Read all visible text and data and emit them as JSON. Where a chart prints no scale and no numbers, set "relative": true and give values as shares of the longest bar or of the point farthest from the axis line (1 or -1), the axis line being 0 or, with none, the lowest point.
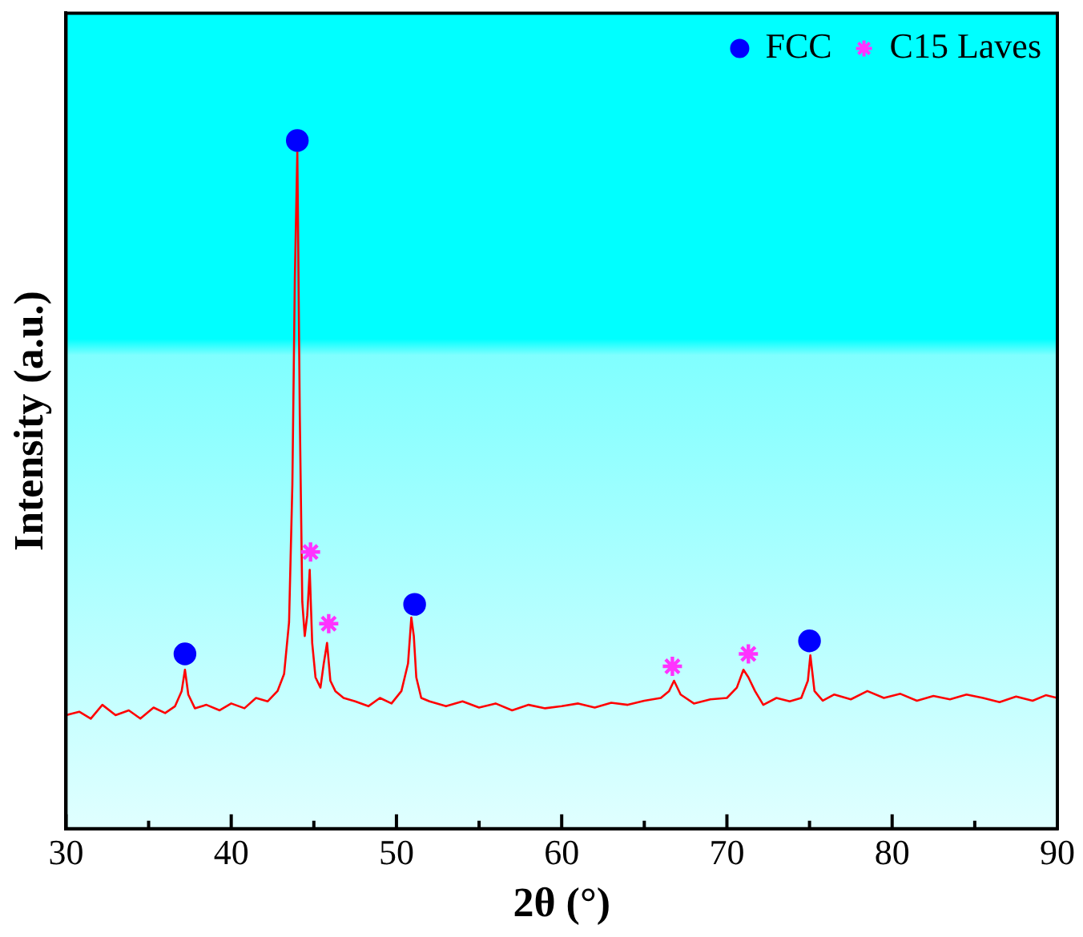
{
  "chart_data": {
    "type": "line",
    "relative": true,
    "xlabel": "2θ (°)",
    "ylabel": "Intensity (a.u.)",
    "xlim": [
      30,
      90
    ],
    "xticks": [
      30,
      {
        "value": 35,
        "label": null
      },
      40,
      {
        "value": 45,
        "label": null
      },
      50,
      {
        "value": 55,
        "label": null
      },
      60,
      {
        "value": 65,
        "label": null
      },
      70,
      {
        "value": 75,
        "label": null
      },
      80,
      {
        "value": 85,
        "label": null
      },
      90
    ],
    "legend": "top right",
    "tick_labels": "x",
    "series": [
      {
        "color": "#ff0000",
        "marker": "none",
        "x": [
          30,
          30.8,
          31.5,
          32.2,
          33,
          33.8,
          34.5,
          35.3,
          36,
          36.6,
          37,
          37.2,
          37.4,
          37.8,
          38.5,
          39.3,
          40,
          40.8,
          41.5,
          42.2,
          42.8,
          43.2,
          43.5,
          43.7,
          43.85,
          44,
          44.15,
          44.3,
          44.45,
          44.6,
          44.75,
          44.9,
          45.1,
          45.4,
          45.6,
          45.8,
          46,
          46.3,
          46.8,
          47.5,
          48.3,
          49,
          49.7,
          50.3,
          50.7,
          50.9,
          51.05,
          51.2,
          51.5,
          52,
          53,
          54,
          55,
          56,
          57,
          58,
          59,
          60,
          61,
          62,
          63,
          64,
          65,
          66,
          66.5,
          66.8,
          67.2,
          68,
          69,
          70,
          70.6,
          71,
          71.3,
          71.7,
          72.2,
          73,
          73.8,
          74.5,
          74.9,
          75.05,
          75.3,
          75.8,
          76.5,
          77.5,
          78.5,
          79.5,
          80.5,
          81.5,
          82.5,
          83.5,
          84.5,
          85.5,
          86.5,
          87.5,
          88.5,
          89.3,
          90
        ],
        "values": [
          0.165,
          0.17,
          0.16,
          0.18,
          0.165,
          0.172,
          0.16,
          0.176,
          0.168,
          0.178,
          0.2,
          0.231,
          0.195,
          0.175,
          0.18,
          0.172,
          0.182,
          0.175,
          0.19,
          0.185,
          0.2,
          0.225,
          0.3,
          0.5,
          0.8,
          0.984,
          0.6,
          0.33,
          0.28,
          0.31,
          0.376,
          0.27,
          0.22,
          0.205,
          0.24,
          0.27,
          0.215,
          0.2,
          0.19,
          0.185,
          0.178,
          0.19,
          0.182,
          0.2,
          0.24,
          0.307,
          0.28,
          0.22,
          0.19,
          0.185,
          0.178,
          0.185,
          0.176,
          0.182,
          0.172,
          0.18,
          0.175,
          0.178,
          0.182,
          0.176,
          0.183,
          0.18,
          0.186,
          0.19,
          0.2,
          0.215,
          0.195,
          0.182,
          0.188,
          0.19,
          0.205,
          0.231,
          0.22,
          0.2,
          0.18,
          0.19,
          0.185,
          0.19,
          0.215,
          0.252,
          0.2,
          0.186,
          0.195,
          0.188,
          0.2,
          0.19,
          0.196,
          0.186,
          0.193,
          0.188,
          0.195,
          0.19,
          0.184,
          0.192,
          0.186,
          0.194,
          0.19
        ]
      },
      {
        "type": "scatter",
        "name": "FCC",
        "color": "#0000ff",
        "marker": "circle",
        "x": [
          37.2,
          44.0,
          51.1,
          75.0
        ],
        "values": [
          0.254,
          1.0,
          0.326,
          0.273
        ]
      },
      {
        "type": "scatter",
        "name": "C15 Laves",
        "color": "#ff33ff",
        "marker": "cross",
        "x": [
          44.8,
          45.9,
          66.7,
          71.3
        ],
        "values": [
          0.402,
          0.298,
          0.236,
          0.254
        ]
      }
    ]
  }
}
